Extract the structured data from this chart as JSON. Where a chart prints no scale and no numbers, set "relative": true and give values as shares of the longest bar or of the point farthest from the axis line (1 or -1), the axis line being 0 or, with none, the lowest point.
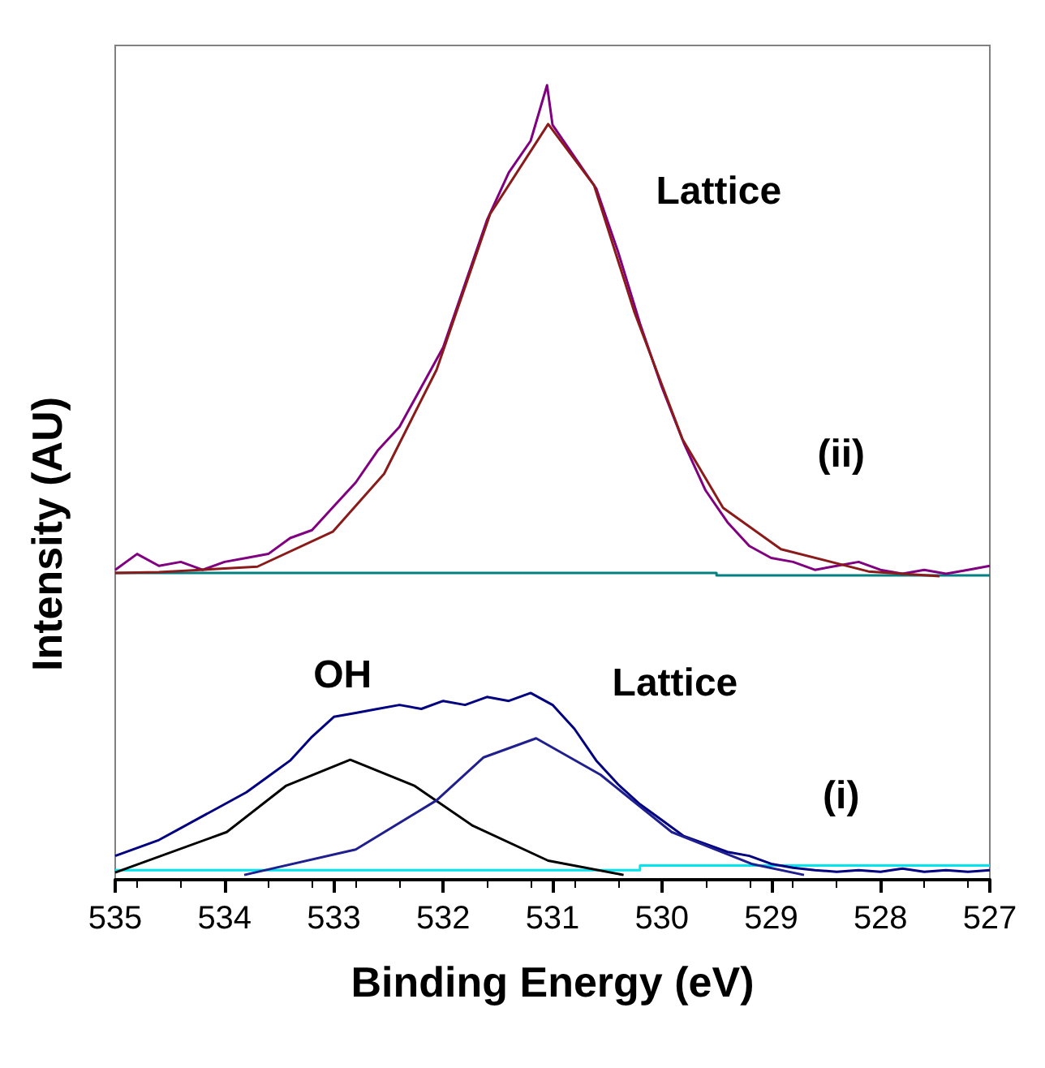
{
  "chart_data": {
    "type": "line",
    "relative": true,
    "xlabel": "Binding Energy (eV)",
    "ylabel": "Intensity (AU)",
    "xlim": [
      535,
      527
    ],
    "xticks": [
      535,
      534,
      533,
      532,
      531,
      530,
      529,
      528,
      527
    ],
    "annotations": [
      "Lattice",
      "(ii)",
      "OH",
      "Lattice",
      "(i)"
    ],
    "series": [
      {
        "color": "#008080",
        "x": [
          535,
          529.5,
          529.5,
          527
        ],
        "values": [
          0.386,
          0.386,
          0.383,
          0.383
        ]
      },
      {
        "color": "#800080",
        "x": [
          535,
          534.8,
          534.6,
          534.4,
          534.2,
          534,
          533.8,
          533.6,
          533.4,
          533.2,
          533,
          532.8,
          532.6,
          532.4,
          532.2,
          532,
          531.8,
          531.6,
          531.4,
          531.2,
          531.05,
          531,
          530.8,
          530.6,
          530.4,
          530.2,
          530,
          529.8,
          529.6,
          529.4,
          529.2,
          529,
          528.8,
          528.6,
          528.4,
          528.2,
          528,
          527.8,
          527.6,
          527.4,
          527.2,
          527
        ],
        "values": [
          0.39,
          0.41,
          0.395,
          0.4,
          0.39,
          0.4,
          0.405,
          0.41,
          0.43,
          0.44,
          0.47,
          0.5,
          0.54,
          0.57,
          0.62,
          0.67,
          0.75,
          0.83,
          0.89,
          0.93,
          1,
          0.95,
          0.91,
          0.87,
          0.79,
          0.7,
          0.62,
          0.55,
          0.49,
          0.45,
          0.42,
          0.405,
          0.4,
          0.39,
          0.395,
          0.4,
          0.39,
          0.385,
          0.39,
          0.385,
          0.39,
          0.395
        ]
      },
      {
        "color": "#8b1a1a",
        "x": [
          535,
          534.6,
          533.7,
          533.01,
          532.54,
          532.06,
          531.57,
          531.04,
          530.62,
          530.25,
          529.81,
          529.44,
          528.91,
          528.11,
          527.46
        ],
        "values": [
          0.386,
          0.387,
          0.394,
          0.438,
          0.511,
          0.642,
          0.838,
          0.951,
          0.874,
          0.714,
          0.554,
          0.468,
          0.416,
          0.388,
          0.382
        ]
      },
      {
        "color": "#00e5ee",
        "x": [
          535,
          530.2,
          530.2,
          527
        ],
        "values": [
          0.012,
          0.012,
          0.018,
          0.018
        ]
      },
      {
        "color": "#000080",
        "x": [
          535,
          534.8,
          534.6,
          534.4,
          534.2,
          534,
          533.8,
          533.6,
          533.4,
          533.2,
          533,
          532.8,
          532.6,
          532.4,
          532.2,
          532,
          531.8,
          531.6,
          531.4,
          531.2,
          531,
          530.8,
          530.6,
          530.4,
          530.2,
          530,
          529.8,
          529.6,
          529.4,
          529.2,
          529,
          528.8,
          528.6,
          528.4,
          528.2,
          528,
          527.8,
          527.6,
          527.4,
          527.2,
          527
        ],
        "values": [
          0.03,
          0.04,
          0.05,
          0.065,
          0.08,
          0.095,
          0.11,
          0.13,
          0.15,
          0.18,
          0.205,
          0.21,
          0.215,
          0.22,
          0.215,
          0.225,
          0.22,
          0.23,
          0.225,
          0.235,
          0.22,
          0.19,
          0.15,
          0.12,
          0.095,
          0.075,
          0.055,
          0.045,
          0.035,
          0.03,
          0.02,
          0.015,
          0.012,
          0.01,
          0.012,
          0.01,
          0.014,
          0.01,
          0.012,
          0.01,
          0.012
        ]
      },
      {
        "color": "#000000",
        "x": [
          535,
          533.98,
          533.44,
          532.85,
          532.26,
          531.73,
          531.04,
          530.35
        ],
        "values": [
          0.009,
          0.06,
          0.118,
          0.151,
          0.118,
          0.068,
          0.024,
          0.006
        ]
      },
      {
        "color": "#1f1f8f",
        "x": [
          533.82,
          532.8,
          532.06,
          531.63,
          531.15,
          530.56,
          529.91,
          529.18,
          528.7
        ],
        "values": [
          0.006,
          0.038,
          0.1,
          0.154,
          0.178,
          0.132,
          0.06,
          0.02,
          0.006
        ]
      }
    ]
  }
}
